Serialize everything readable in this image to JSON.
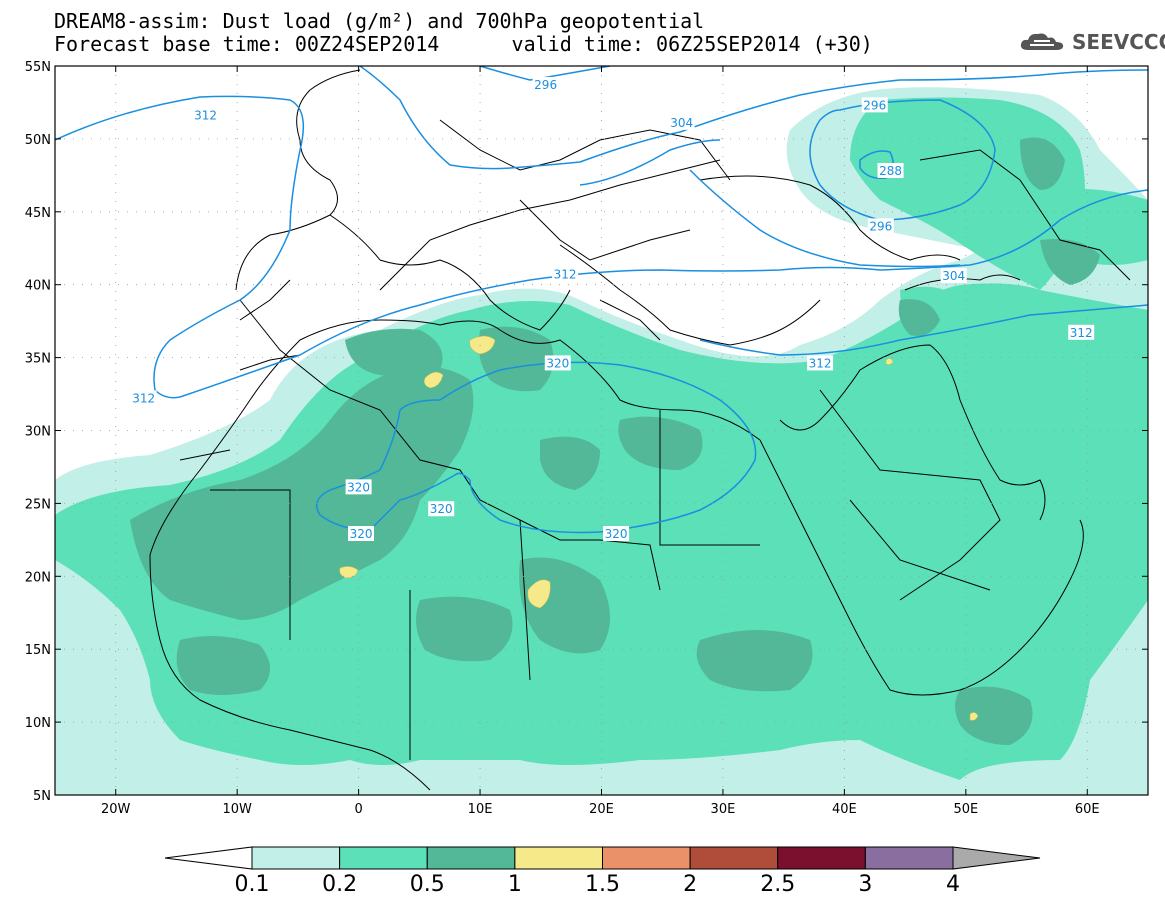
{
  "title": {
    "line1": "DREAM8-assim: Dust load (g/m²) and 700hPa geopotential",
    "line2": "Forecast base time: 00Z24SEP2014      valid time: 06Z25SEP2014 (+30)"
  },
  "logo": {
    "text": "SEEVCCC",
    "icon": "cloud-icon"
  },
  "map": {
    "lon_range": [
      -25,
      65
    ],
    "lat_range": [
      5,
      55
    ],
    "lon_ticks": [
      {
        "value": -20,
        "label": "20W"
      },
      {
        "value": -10,
        "label": "10W"
      },
      {
        "value": 0,
        "label": "0"
      },
      {
        "value": 10,
        "label": "10E"
      },
      {
        "value": 20,
        "label": "20E"
      },
      {
        "value": 30,
        "label": "30E"
      },
      {
        "value": 40,
        "label": "40E"
      },
      {
        "value": 50,
        "label": "50E"
      },
      {
        "value": 60,
        "label": "60E"
      }
    ],
    "lat_ticks": [
      {
        "value": 55,
        "label": "55N"
      },
      {
        "value": 50,
        "label": "50N"
      },
      {
        "value": 45,
        "label": "45N"
      },
      {
        "value": 40,
        "label": "40N"
      },
      {
        "value": 35,
        "label": "35N"
      },
      {
        "value": 30,
        "label": "30N"
      },
      {
        "value": 25,
        "label": "25N"
      },
      {
        "value": 20,
        "label": "20N"
      },
      {
        "value": 15,
        "label": "15N"
      },
      {
        "value": 10,
        "label": "10N"
      },
      {
        "value": 5,
        "label": "5N"
      }
    ],
    "contour_color": "#1a8fe0",
    "contour_labels": [
      {
        "text": "312",
        "lon": -12.6,
        "lat": 51.6
      },
      {
        "text": "296",
        "lon": 15.4,
        "lat": 53.7
      },
      {
        "text": "304",
        "lon": 26.6,
        "lat": 51.1
      },
      {
        "text": "296",
        "lon": 42.5,
        "lat": 52.3
      },
      {
        "text": "288",
        "lon": 43.8,
        "lat": 47.8
      },
      {
        "text": "296",
        "lon": 43.0,
        "lat": 44.0
      },
      {
        "text": "304",
        "lon": 49.0,
        "lat": 40.6
      },
      {
        "text": "312",
        "lon": 59.5,
        "lat": 36.7
      },
      {
        "text": "312",
        "lon": 17.0,
        "lat": 40.7
      },
      {
        "text": "312",
        "lon": 38.0,
        "lat": 34.6
      },
      {
        "text": "312",
        "lon": -17.7,
        "lat": 32.2
      },
      {
        "text": "320",
        "lon": 16.4,
        "lat": 34.6
      },
      {
        "text": "320",
        "lon": 0.0,
        "lat": 26.1
      },
      {
        "text": "320",
        "lon": 6.8,
        "lat": 24.6
      },
      {
        "text": "320",
        "lon": 0.2,
        "lat": 22.9
      },
      {
        "text": "320",
        "lon": 21.2,
        "lat": 22.9
      }
    ],
    "land_color": "#ffffff",
    "border_color": "#000000"
  },
  "colorbar": {
    "levels": [
      "0.1",
      "0.2",
      "0.5",
      "1",
      "1.5",
      "2",
      "2.5",
      "3",
      "4"
    ],
    "colors": [
      "#ffffff",
      "#c2efe8",
      "#5ce0b8",
      "#52b897",
      "#f6e98a",
      "#ea9169",
      "#b04c3a",
      "#7a0f2e",
      "#8b6ea0",
      "#aaaaaa"
    ]
  },
  "dust_colors": {
    "light": "#c2efe8",
    "medium": "#5ce0b8",
    "dark": "#52b897",
    "yellow": "#f6e98a"
  }
}
